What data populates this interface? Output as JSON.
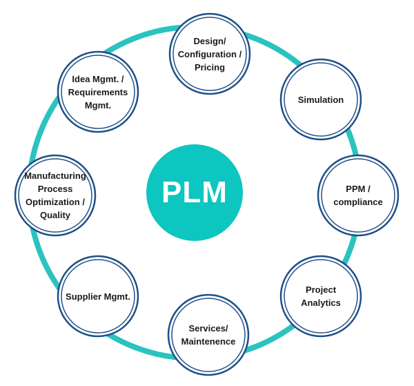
{
  "diagram": {
    "center": {
      "label": "PLM",
      "color": "#0dc6bf"
    },
    "ring_color": "#2bc3bf",
    "node_stroke": "#1e4f86",
    "nodes": [
      {
        "id": "design",
        "label": "Design/\nConfiguration /\nPricing"
      },
      {
        "id": "simulation",
        "label": "Simulation"
      },
      {
        "id": "ppm",
        "label": "PPM /\ncompliance"
      },
      {
        "id": "project-analytics",
        "label": "Project Analytics"
      },
      {
        "id": "services",
        "label": "Services/\nMaintenence"
      },
      {
        "id": "supplier",
        "label": "Supplier Mgmt."
      },
      {
        "id": "manufacturing",
        "label": "Manufacturing\nProcess\nOptimization /\nQuality"
      },
      {
        "id": "idea",
        "label": "Idea Mgmt. /\nRequirements\nMgmt."
      }
    ]
  }
}
